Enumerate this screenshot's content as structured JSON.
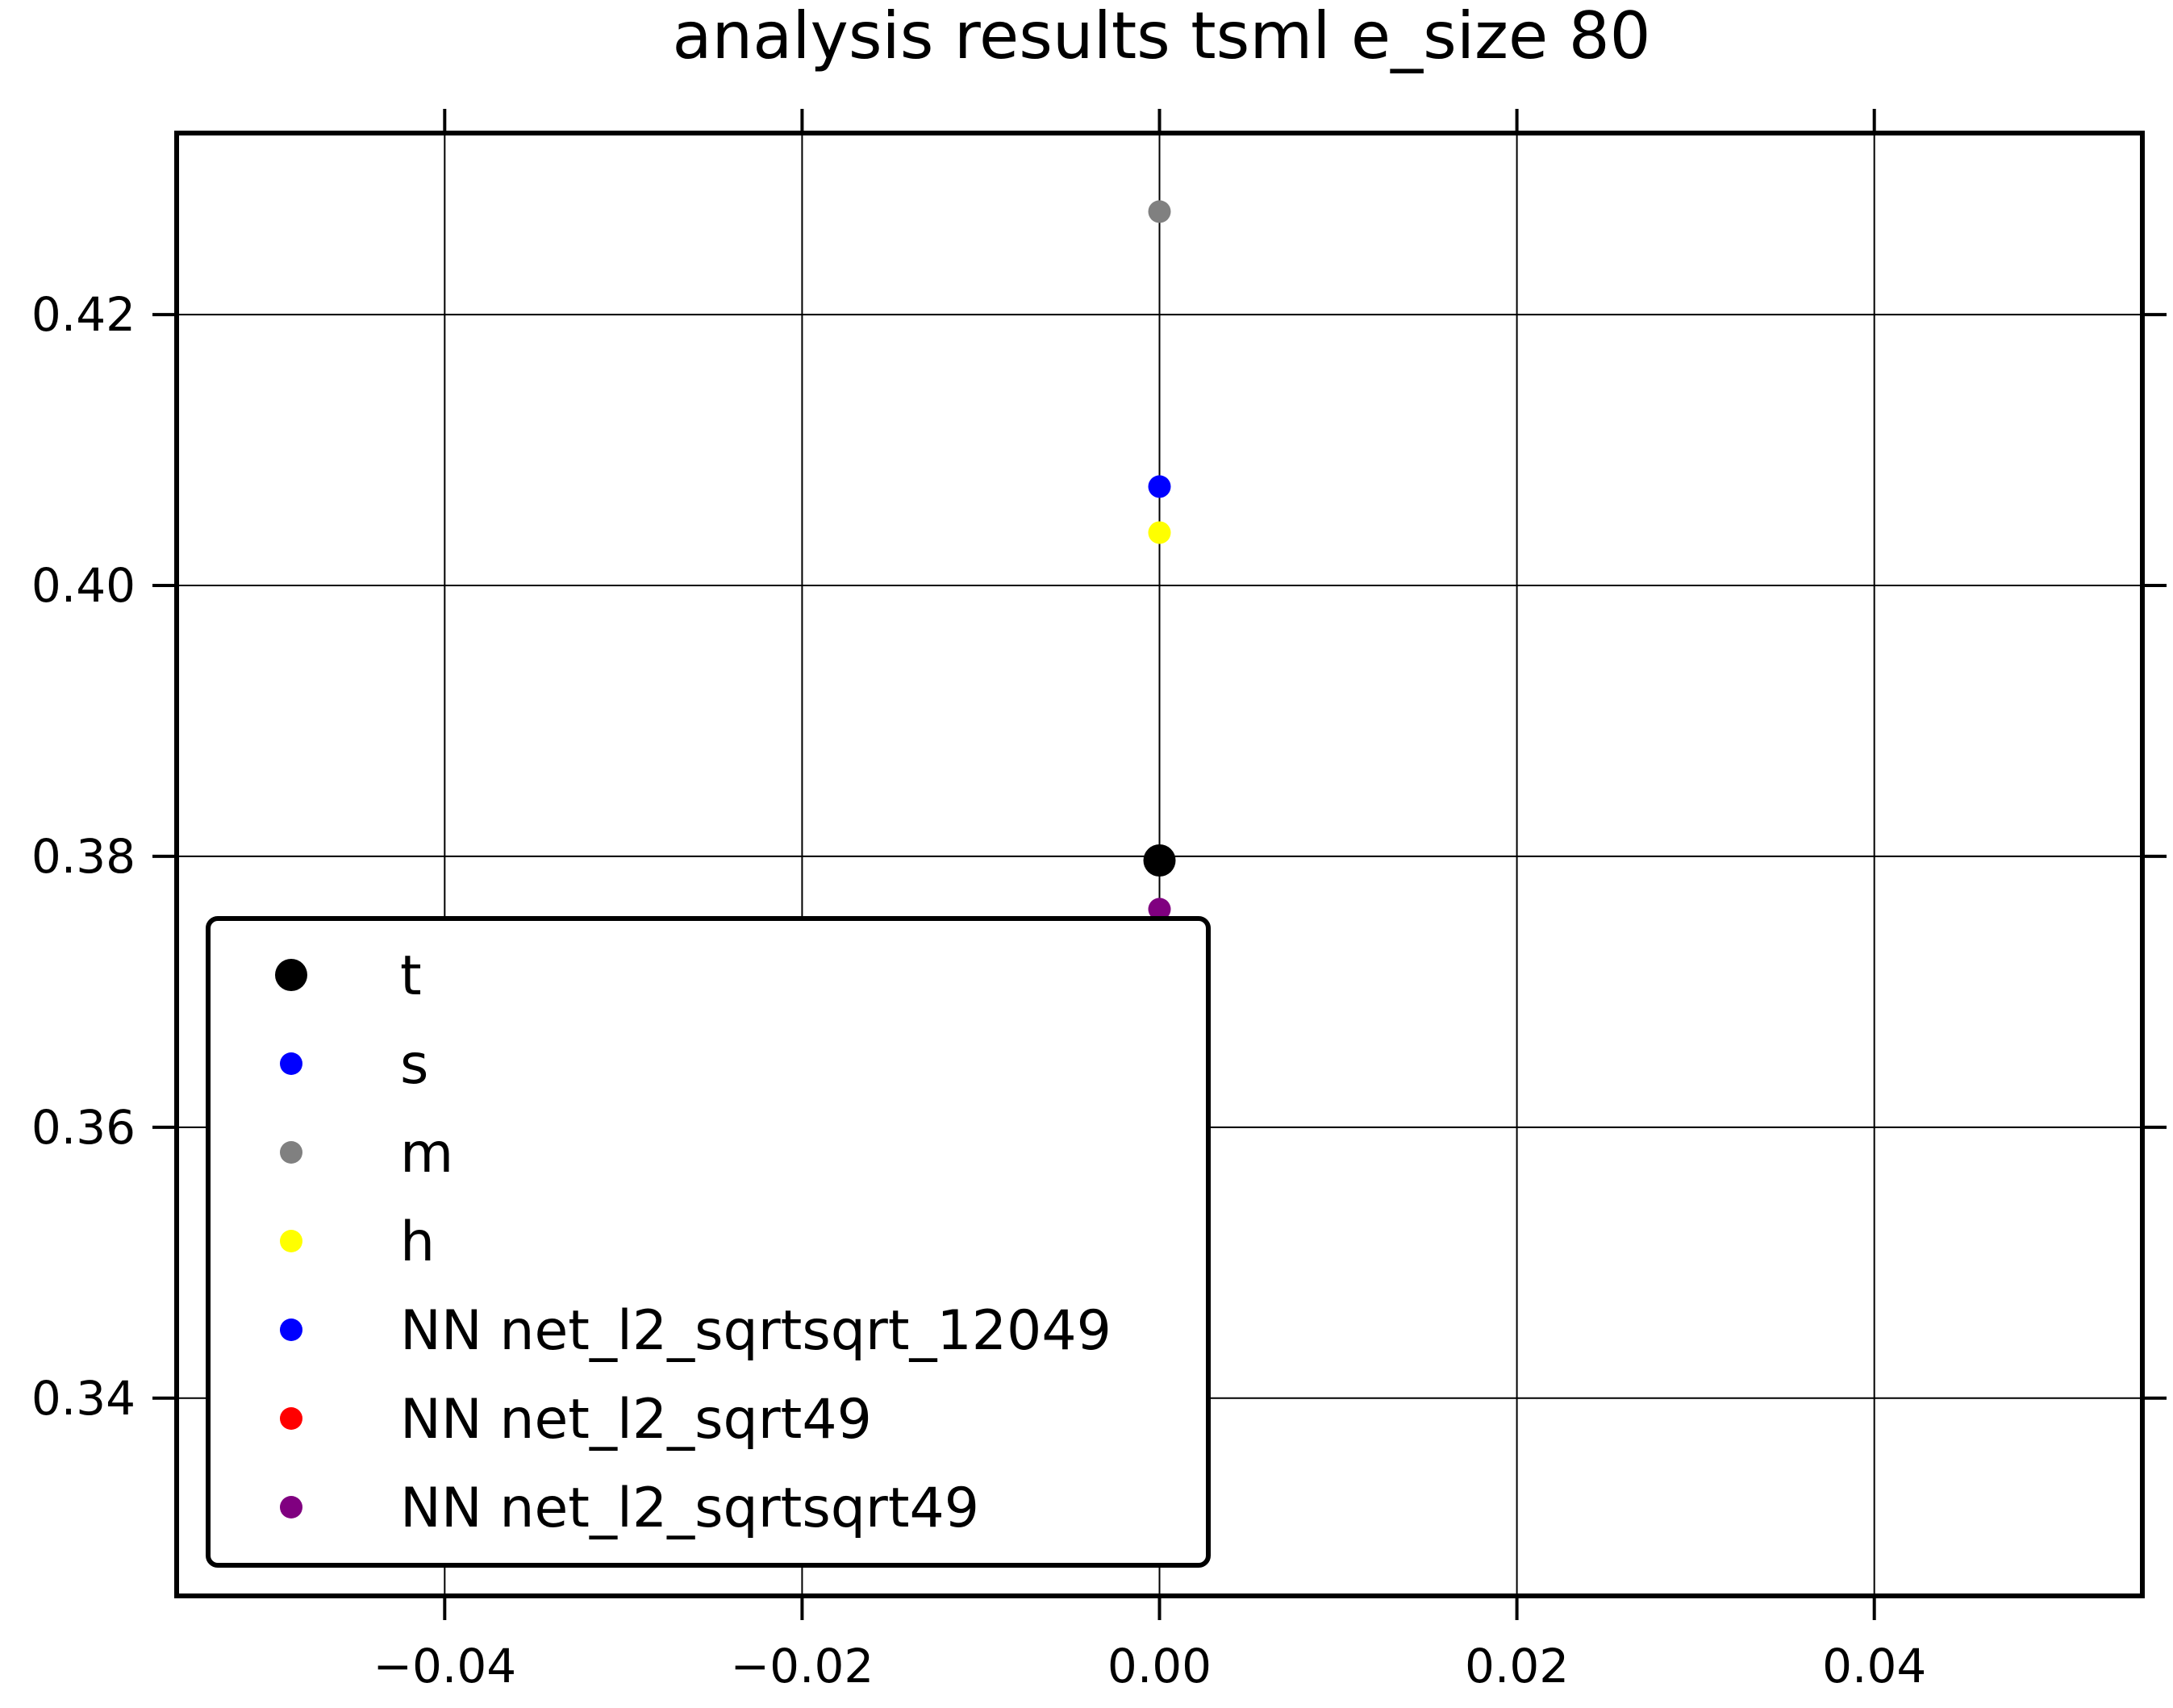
{
  "chart_data": {
    "type": "scatter",
    "title": "analysis results tsml  e_size 80",
    "xlabel": "",
    "ylabel": "",
    "xlim": [
      -0.055,
      0.055
    ],
    "ylim": [
      0.3254,
      0.4334
    ],
    "xticks": [
      -0.04,
      -0.02,
      0.0,
      0.02,
      0.04
    ],
    "xtick_labels": [
      "−0.04",
      "−0.02",
      "0.00",
      "0.02",
      "0.04"
    ],
    "yticks": [
      0.34,
      0.36,
      0.38,
      0.4,
      0.42
    ],
    "ytick_labels": [
      "0.34",
      "0.36",
      "0.38",
      "0.40",
      "0.42"
    ],
    "grid": true,
    "legend_position": "lower-left",
    "series": [
      {
        "name": "t",
        "color": "#000000",
        "x": [
          0.0
        ],
        "y": [
          0.3797
        ],
        "marker": "large"
      },
      {
        "name": "s",
        "color": "#0000ff",
        "x": [
          0.0
        ],
        "y": [
          0.4073
        ],
        "marker": "small"
      },
      {
        "name": "m",
        "color": "#808080",
        "x": [
          0.0
        ],
        "y": [
          0.4276
        ],
        "marker": "small"
      },
      {
        "name": "h",
        "color": "#ffff00",
        "x": [
          0.0
        ],
        "y": [
          0.4039
        ],
        "marker": "small"
      },
      {
        "name": "NN net_l2_sqrtsqrt_12049",
        "color": "#0000ff",
        "x": [],
        "y": [],
        "marker": "small"
      },
      {
        "name": "NN net_l2_sqrt49",
        "color": "#ff0000",
        "x": [],
        "y": [],
        "marker": "small"
      },
      {
        "name": "NN net_l2_sqrtsqrt49",
        "color": "#800080",
        "x": [
          0.0
        ],
        "y": [
          0.3761
        ],
        "marker": "small"
      }
    ]
  }
}
